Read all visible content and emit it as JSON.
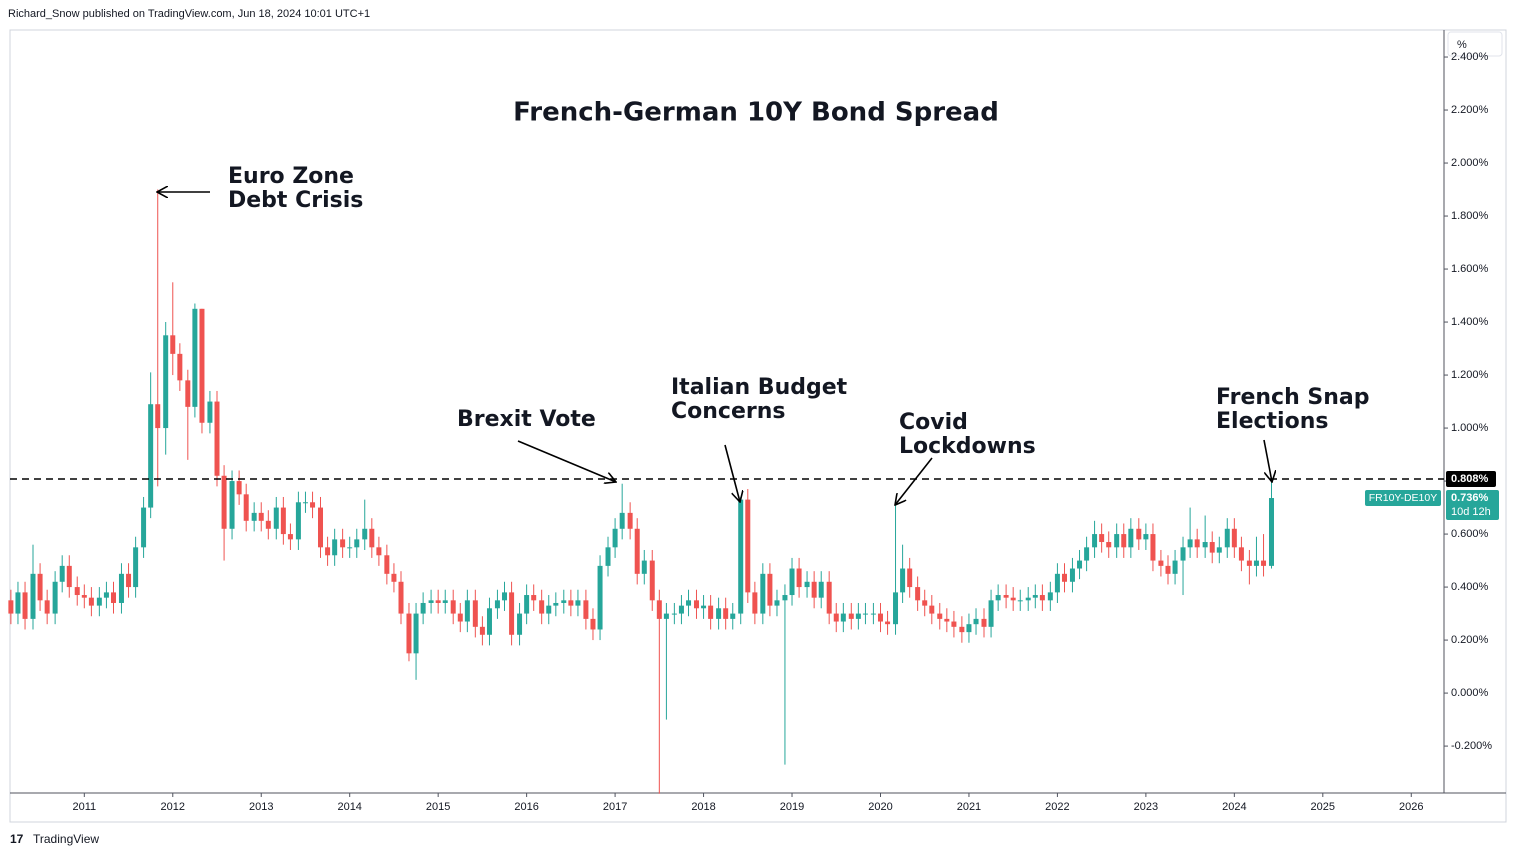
{
  "header": "Richard_Snow published on TradingView.com, Jun 18, 2024 10:01 UTC+1",
  "footer": "TradingView",
  "chart_data": {
    "type": "candlestick",
    "title": "French-German 10Y Bond Spread",
    "unit": "%",
    "symbol": "FR10Y-DE10Y",
    "last_price_label": "0.736%",
    "countdown": "10d 12h",
    "up_color": "#26a69a",
    "down_color": "#ef5350",
    "hline": {
      "value": 0.808,
      "label": "0.808%"
    },
    "xlim": [
      2010.16,
      2026.37
    ],
    "xticks": [
      2011,
      2012,
      2013,
      2014,
      2015,
      2016,
      2017,
      2018,
      2019,
      2020,
      2021,
      2022,
      2023,
      2024,
      2025,
      2026
    ],
    "ylim": [
      -0.377,
      2.502
    ],
    "yticks": [
      {
        "value": -0.2,
        "label": "-0.200%"
      },
      {
        "value": 0,
        "label": "0.000%"
      },
      {
        "value": 0.2,
        "label": "0.200%"
      },
      {
        "value": 0.4,
        "label": "0.400%"
      },
      {
        "value": 0.6,
        "label": "0.600%"
      },
      {
        "value": 0.8,
        "label": "0.800%"
      },
      {
        "value": 1.0,
        "label": "1.000%"
      },
      {
        "value": 1.2,
        "label": "1.200%"
      },
      {
        "value": 1.4,
        "label": "1.400%"
      },
      {
        "value": 1.6,
        "label": "1.600%"
      },
      {
        "value": 1.8,
        "label": "1.800%"
      },
      {
        "value": 2.0,
        "label": "2.000%"
      },
      {
        "value": 2.2,
        "label": "2.200%"
      },
      {
        "value": 2.4,
        "label": "2.400%"
      }
    ],
    "annotations": [
      {
        "lines": [
          "Euro Zone",
          "Debt Crisis"
        ]
      },
      {
        "lines": [
          "Brexit Vote"
        ]
      },
      {
        "lines": [
          "Italian Budget",
          "Concerns"
        ]
      },
      {
        "lines": [
          "Covid",
          "Lockdowns"
        ]
      },
      {
        "lines": [
          "French Snap",
          "Elections"
        ]
      }
    ],
    "x": [
      2010.17,
      2010.25,
      2010.33,
      2010.42,
      2010.5,
      2010.58,
      2010.67,
      2010.75,
      2010.83,
      2010.92,
      2011,
      2011.08,
      2011.17,
      2011.25,
      2011.33,
      2011.42,
      2011.5,
      2011.58,
      2011.67,
      2011.75,
      2011.83,
      2011.92,
      2012,
      2012.08,
      2012.17,
      2012.25,
      2012.33,
      2012.42,
      2012.5,
      2012.58,
      2012.67,
      2012.75,
      2012.83,
      2012.92,
      2013,
      2013.08,
      2013.17,
      2013.25,
      2013.33,
      2013.42,
      2013.5,
      2013.58,
      2013.67,
      2013.75,
      2013.83,
      2013.92,
      2014,
      2014.08,
      2014.17,
      2014.25,
      2014.33,
      2014.42,
      2014.5,
      2014.58,
      2014.67,
      2014.75,
      2014.83,
      2014.92,
      2015,
      2015.08,
      2015.17,
      2015.25,
      2015.33,
      2015.42,
      2015.5,
      2015.58,
      2015.67,
      2015.75,
      2015.83,
      2015.92,
      2016,
      2016.08,
      2016.17,
      2016.25,
      2016.33,
      2016.42,
      2016.5,
      2016.58,
      2016.67,
      2016.75,
      2016.83,
      2016.92,
      2017,
      2017.08,
      2017.17,
      2017.25,
      2017.33,
      2017.42,
      2017.5,
      2017.58,
      2017.67,
      2017.75,
      2017.83,
      2017.92,
      2018,
      2018.08,
      2018.17,
      2018.25,
      2018.33,
      2018.42,
      2018.5,
      2018.58,
      2018.67,
      2018.75,
      2018.83,
      2018.92,
      2019,
      2019.08,
      2019.17,
      2019.25,
      2019.33,
      2019.42,
      2019.5,
      2019.58,
      2019.67,
      2019.75,
      2019.83,
      2019.92,
      2020,
      2020.08,
      2020.17,
      2020.25,
      2020.33,
      2020.42,
      2020.5,
      2020.58,
      2020.67,
      2020.75,
      2020.83,
      2020.92,
      2021,
      2021.08,
      2021.17,
      2021.25,
      2021.33,
      2021.42,
      2021.5,
      2021.58,
      2021.67,
      2021.75,
      2021.83,
      2021.92,
      2022,
      2022.08,
      2022.17,
      2022.25,
      2022.33,
      2022.42,
      2022.5,
      2022.58,
      2022.67,
      2022.75,
      2022.83,
      2022.92,
      2023,
      2023.08,
      2023.17,
      2023.25,
      2023.33,
      2023.42,
      2023.5,
      2023.58,
      2023.67,
      2023.75,
      2023.83,
      2023.92,
      2024,
      2024.08,
      2024.17,
      2024.25,
      2024.33,
      2024.42
    ],
    "ohlc": [
      [
        0.35,
        0.39,
        0.26,
        0.3
      ],
      [
        0.3,
        0.42,
        0.26,
        0.38
      ],
      [
        0.38,
        0.42,
        0.24,
        0.28
      ],
      [
        0.28,
        0.56,
        0.24,
        0.45
      ],
      [
        0.45,
        0.49,
        0.31,
        0.35
      ],
      [
        0.35,
        0.39,
        0.26,
        0.3
      ],
      [
        0.3,
        0.46,
        0.26,
        0.42
      ],
      [
        0.42,
        0.52,
        0.38,
        0.48
      ],
      [
        0.48,
        0.52,
        0.36,
        0.4
      ],
      [
        0.4,
        0.44,
        0.33,
        0.37
      ],
      [
        0.37,
        0.41,
        0.32,
        0.36
      ],
      [
        0.36,
        0.4,
        0.29,
        0.33
      ],
      [
        0.33,
        0.4,
        0.29,
        0.36
      ],
      [
        0.36,
        0.42,
        0.32,
        0.38
      ],
      [
        0.38,
        0.42,
        0.3,
        0.34
      ],
      [
        0.34,
        0.49,
        0.3,
        0.45
      ],
      [
        0.45,
        0.49,
        0.36,
        0.4
      ],
      [
        0.4,
        0.59,
        0.36,
        0.55
      ],
      [
        0.55,
        0.74,
        0.51,
        0.7
      ],
      [
        0.7,
        1.21,
        0.66,
        1.09
      ],
      [
        1.09,
        1.9,
        0.78,
        1.0
      ],
      [
        1.0,
        1.4,
        0.9,
        1.35
      ],
      [
        1.35,
        1.55,
        1.2,
        1.28
      ],
      [
        1.28,
        1.32,
        1.14,
        1.18
      ],
      [
        1.18,
        1.22,
        0.88,
        1.08
      ],
      [
        1.08,
        1.47,
        1.04,
        1.45
      ],
      [
        1.45,
        1.45,
        0.98,
        1.02
      ],
      [
        1.02,
        1.14,
        0.98,
        1.1
      ],
      [
        1.1,
        1.14,
        0.78,
        0.82
      ],
      [
        0.82,
        0.86,
        0.5,
        0.62
      ],
      [
        0.62,
        0.84,
        0.58,
        0.8
      ],
      [
        0.8,
        0.84,
        0.71,
        0.75
      ],
      [
        0.75,
        0.79,
        0.61,
        0.65
      ],
      [
        0.65,
        0.72,
        0.61,
        0.68
      ],
      [
        0.68,
        0.72,
        0.61,
        0.65
      ],
      [
        0.65,
        0.69,
        0.58,
        0.62
      ],
      [
        0.62,
        0.74,
        0.58,
        0.7
      ],
      [
        0.7,
        0.74,
        0.56,
        0.6
      ],
      [
        0.6,
        0.64,
        0.54,
        0.58
      ],
      [
        0.58,
        0.76,
        0.54,
        0.72
      ],
      [
        0.72,
        0.76,
        0.68,
        0.72
      ],
      [
        0.72,
        0.76,
        0.66,
        0.7
      ],
      [
        0.7,
        0.74,
        0.51,
        0.55
      ],
      [
        0.55,
        0.59,
        0.48,
        0.52
      ],
      [
        0.52,
        0.62,
        0.48,
        0.58
      ],
      [
        0.58,
        0.62,
        0.51,
        0.55
      ],
      [
        0.55,
        0.59,
        0.51,
        0.55
      ],
      [
        0.55,
        0.62,
        0.51,
        0.58
      ],
      [
        0.58,
        0.73,
        0.54,
        0.62
      ],
      [
        0.62,
        0.66,
        0.51,
        0.55
      ],
      [
        0.55,
        0.59,
        0.48,
        0.52
      ],
      [
        0.52,
        0.56,
        0.41,
        0.45
      ],
      [
        0.45,
        0.49,
        0.38,
        0.42
      ],
      [
        0.42,
        0.46,
        0.26,
        0.3
      ],
      [
        0.3,
        0.34,
        0.12,
        0.15
      ],
      [
        0.15,
        0.34,
        0.05,
        0.3
      ],
      [
        0.3,
        0.38,
        0.26,
        0.34
      ],
      [
        0.34,
        0.39,
        0.3,
        0.35
      ],
      [
        0.35,
        0.39,
        0.3,
        0.34
      ],
      [
        0.34,
        0.39,
        0.3,
        0.35
      ],
      [
        0.35,
        0.39,
        0.26,
        0.3
      ],
      [
        0.3,
        0.34,
        0.23,
        0.27
      ],
      [
        0.27,
        0.39,
        0.23,
        0.35
      ],
      [
        0.35,
        0.39,
        0.21,
        0.25
      ],
      [
        0.25,
        0.29,
        0.18,
        0.22
      ],
      [
        0.22,
        0.36,
        0.18,
        0.32
      ],
      [
        0.32,
        0.39,
        0.28,
        0.35
      ],
      [
        0.35,
        0.42,
        0.31,
        0.38
      ],
      [
        0.38,
        0.42,
        0.18,
        0.22
      ],
      [
        0.22,
        0.34,
        0.18,
        0.3
      ],
      [
        0.3,
        0.41,
        0.26,
        0.37
      ],
      [
        0.37,
        0.41,
        0.31,
        0.35
      ],
      [
        0.35,
        0.39,
        0.26,
        0.3
      ],
      [
        0.3,
        0.37,
        0.26,
        0.33
      ],
      [
        0.33,
        0.38,
        0.29,
        0.34
      ],
      [
        0.34,
        0.39,
        0.3,
        0.35
      ],
      [
        0.35,
        0.39,
        0.29,
        0.33
      ],
      [
        0.33,
        0.39,
        0.29,
        0.35
      ],
      [
        0.35,
        0.39,
        0.24,
        0.28
      ],
      [
        0.28,
        0.32,
        0.2,
        0.24
      ],
      [
        0.24,
        0.52,
        0.2,
        0.48
      ],
      [
        0.48,
        0.59,
        0.44,
        0.55
      ],
      [
        0.55,
        0.66,
        0.51,
        0.62
      ],
      [
        0.62,
        0.79,
        0.58,
        0.68
      ],
      [
        0.68,
        0.72,
        0.58,
        0.62
      ],
      [
        0.62,
        0.66,
        0.41,
        0.45
      ],
      [
        0.45,
        0.54,
        0.41,
        0.5
      ],
      [
        0.5,
        0.54,
        0.31,
        0.35
      ],
      [
        0.35,
        0.39,
        -0.38,
        0.28
      ],
      [
        0.28,
        0.34,
        -0.1,
        0.3
      ],
      [
        0.3,
        0.34,
        0.26,
        0.3
      ],
      [
        0.3,
        0.37,
        0.26,
        0.33
      ],
      [
        0.33,
        0.39,
        0.29,
        0.35
      ],
      [
        0.35,
        0.39,
        0.28,
        0.32
      ],
      [
        0.32,
        0.37,
        0.28,
        0.33
      ],
      [
        0.33,
        0.37,
        0.24,
        0.28
      ],
      [
        0.28,
        0.36,
        0.24,
        0.32
      ],
      [
        0.32,
        0.36,
        0.24,
        0.28
      ],
      [
        0.28,
        0.34,
        0.24,
        0.3
      ],
      [
        0.3,
        0.74,
        0.26,
        0.73
      ],
      [
        0.73,
        0.77,
        0.34,
        0.38
      ],
      [
        0.38,
        0.42,
        0.26,
        0.3
      ],
      [
        0.3,
        0.49,
        0.26,
        0.45
      ],
      [
        0.45,
        0.49,
        0.29,
        0.33
      ],
      [
        0.33,
        0.39,
        0.29,
        0.35
      ],
      [
        0.35,
        0.41,
        -0.27,
        0.37
      ],
      [
        0.37,
        0.51,
        0.33,
        0.47
      ],
      [
        0.47,
        0.51,
        0.36,
        0.4
      ],
      [
        0.4,
        0.46,
        0.36,
        0.42
      ],
      [
        0.42,
        0.46,
        0.32,
        0.36
      ],
      [
        0.36,
        0.46,
        0.32,
        0.42
      ],
      [
        0.42,
        0.46,
        0.26,
        0.3
      ],
      [
        0.3,
        0.34,
        0.23,
        0.27
      ],
      [
        0.27,
        0.34,
        0.23,
        0.3
      ],
      [
        0.3,
        0.34,
        0.24,
        0.28
      ],
      [
        0.28,
        0.34,
        0.24,
        0.3
      ],
      [
        0.3,
        0.34,
        0.26,
        0.3
      ],
      [
        0.3,
        0.34,
        0.26,
        0.3
      ],
      [
        0.3,
        0.34,
        0.23,
        0.27
      ],
      [
        0.27,
        0.31,
        0.22,
        0.26
      ],
      [
        0.26,
        0.72,
        0.22,
        0.38
      ],
      [
        0.38,
        0.56,
        0.34,
        0.47
      ],
      [
        0.47,
        0.51,
        0.36,
        0.4
      ],
      [
        0.4,
        0.44,
        0.31,
        0.35
      ],
      [
        0.35,
        0.39,
        0.29,
        0.33
      ],
      [
        0.33,
        0.37,
        0.26,
        0.3
      ],
      [
        0.3,
        0.34,
        0.24,
        0.28
      ],
      [
        0.28,
        0.32,
        0.23,
        0.27
      ],
      [
        0.27,
        0.31,
        0.21,
        0.25
      ],
      [
        0.25,
        0.29,
        0.19,
        0.23
      ],
      [
        0.23,
        0.3,
        0.19,
        0.26
      ],
      [
        0.26,
        0.32,
        0.22,
        0.28
      ],
      [
        0.28,
        0.32,
        0.21,
        0.25
      ],
      [
        0.25,
        0.39,
        0.21,
        0.35
      ],
      [
        0.35,
        0.41,
        0.31,
        0.37
      ],
      [
        0.37,
        0.41,
        0.32,
        0.36
      ],
      [
        0.36,
        0.4,
        0.31,
        0.35
      ],
      [
        0.35,
        0.39,
        0.31,
        0.35
      ],
      [
        0.35,
        0.4,
        0.31,
        0.36
      ],
      [
        0.36,
        0.41,
        0.32,
        0.37
      ],
      [
        0.37,
        0.41,
        0.31,
        0.35
      ],
      [
        0.35,
        0.42,
        0.31,
        0.38
      ],
      [
        0.38,
        0.49,
        0.34,
        0.45
      ],
      [
        0.45,
        0.49,
        0.38,
        0.42
      ],
      [
        0.42,
        0.51,
        0.38,
        0.47
      ],
      [
        0.47,
        0.54,
        0.43,
        0.5
      ],
      [
        0.5,
        0.59,
        0.46,
        0.55
      ],
      [
        0.55,
        0.65,
        0.51,
        0.6
      ],
      [
        0.6,
        0.64,
        0.53,
        0.57
      ],
      [
        0.57,
        0.61,
        0.51,
        0.55
      ],
      [
        0.55,
        0.64,
        0.51,
        0.6
      ],
      [
        0.6,
        0.64,
        0.51,
        0.55
      ],
      [
        0.55,
        0.66,
        0.51,
        0.62
      ],
      [
        0.62,
        0.66,
        0.54,
        0.58
      ],
      [
        0.58,
        0.64,
        0.54,
        0.6
      ],
      [
        0.6,
        0.64,
        0.46,
        0.5
      ],
      [
        0.5,
        0.54,
        0.44,
        0.48
      ],
      [
        0.48,
        0.52,
        0.41,
        0.45
      ],
      [
        0.45,
        0.54,
        0.41,
        0.5
      ],
      [
        0.5,
        0.59,
        0.37,
        0.55
      ],
      [
        0.55,
        0.7,
        0.51,
        0.58
      ],
      [
        0.58,
        0.62,
        0.51,
        0.55
      ],
      [
        0.55,
        0.67,
        0.51,
        0.57
      ],
      [
        0.57,
        0.61,
        0.49,
        0.53
      ],
      [
        0.53,
        0.59,
        0.49,
        0.55
      ],
      [
        0.55,
        0.66,
        0.51,
        0.62
      ],
      [
        0.62,
        0.66,
        0.51,
        0.55
      ],
      [
        0.55,
        0.59,
        0.46,
        0.5
      ],
      [
        0.5,
        0.54,
        0.41,
        0.48
      ],
      [
        0.48,
        0.59,
        0.44,
        0.5
      ],
      [
        0.5,
        0.6,
        0.44,
        0.48
      ],
      [
        0.48,
        0.8,
        0.47,
        0.736
      ]
    ]
  }
}
